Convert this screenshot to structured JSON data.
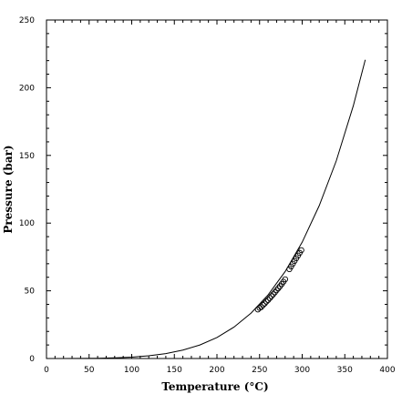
{
  "chart_data": {
    "type": "line",
    "title": "",
    "xlabel": "Temperature (°C)",
    "ylabel": "Pressure (bar)",
    "xlim": [
      0,
      400
    ],
    "ylim": [
      0,
      250
    ],
    "xticks": [
      0,
      50,
      100,
      150,
      200,
      250,
      300,
      350,
      400
    ],
    "yticks": [
      0,
      50,
      100,
      150,
      200,
      250
    ],
    "grid": false,
    "legend": "none",
    "series": [
      {
        "kind": "line",
        "style": "solid",
        "color": "#000000",
        "x": [
          0,
          20,
          40,
          60,
          80,
          100,
          120,
          140,
          160,
          180,
          200,
          220,
          240,
          260,
          280,
          300,
          320,
          340,
          360,
          374
        ],
        "y": [
          0.006,
          0.023,
          0.074,
          0.2,
          0.47,
          1.01,
          1.99,
          3.6,
          6.2,
          10.0,
          15.5,
          23.2,
          33.5,
          47.0,
          64.2,
          85.9,
          112.9,
          146.0,
          186.7,
          220.6
        ]
      },
      {
        "kind": "scatter",
        "marker": "open-circle",
        "color": "#000000",
        "x": [
          248,
          250,
          252,
          254,
          256,
          258,
          260,
          262,
          264,
          266,
          268,
          270,
          272,
          274,
          276,
          278,
          280,
          285,
          287,
          289,
          291,
          293,
          295,
          297,
          299
        ],
        "y": [
          36.2,
          37.4,
          38.0,
          39.5,
          40.6,
          42.0,
          43.2,
          44.6,
          46.0,
          47.4,
          48.9,
          50.4,
          51.9,
          53.4,
          55.0,
          56.7,
          58.5,
          66.0,
          68.0,
          70.0,
          72.0,
          74.0,
          76.0,
          78.0,
          80.0
        ]
      }
    ]
  }
}
